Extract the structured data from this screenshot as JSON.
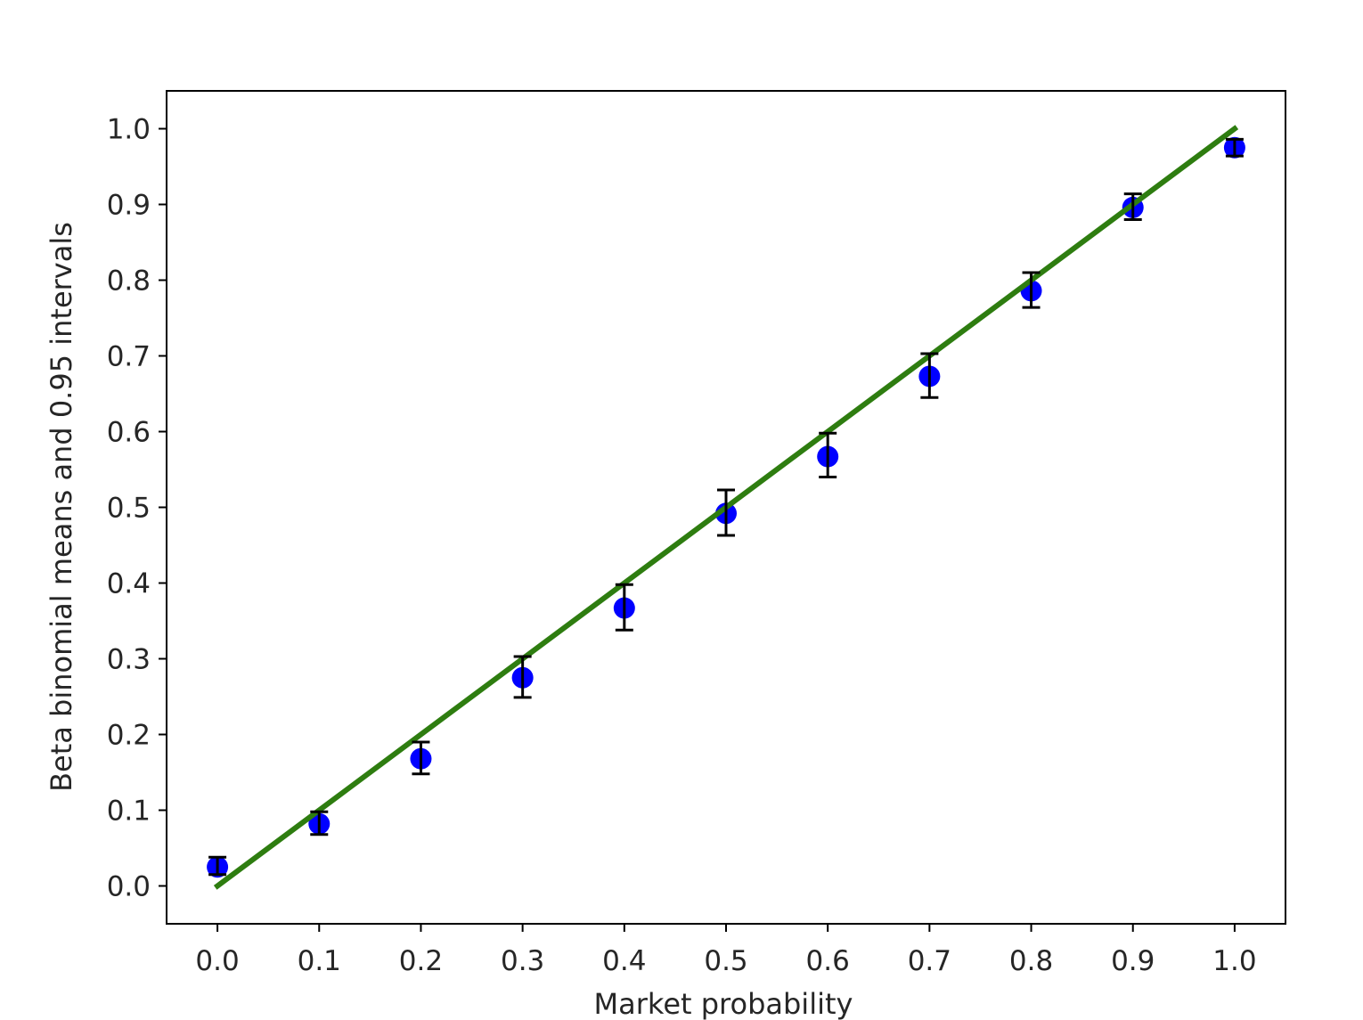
{
  "chart_data": {
    "type": "scatter",
    "title": "",
    "xlabel": "Market probability",
    "ylabel": "Beta binomial means and 0.95 intervals",
    "xlim": [
      -0.05,
      1.05
    ],
    "ylim": [
      -0.05,
      1.05
    ],
    "x_ticks": [
      "0.0",
      "0.1",
      "0.2",
      "0.3",
      "0.4",
      "0.5",
      "0.6",
      "0.7",
      "0.8",
      "0.9",
      "1.0"
    ],
    "y_ticks": [
      "0.0",
      "0.1",
      "0.2",
      "0.3",
      "0.4",
      "0.5",
      "0.6",
      "0.7",
      "0.8",
      "0.9",
      "1.0"
    ],
    "grid": false,
    "points": {
      "x": [
        0.0,
        0.1,
        0.2,
        0.3,
        0.4,
        0.5,
        0.6,
        0.7,
        0.8,
        0.9,
        1.0
      ],
      "y": [
        0.025,
        0.082,
        0.168,
        0.275,
        0.367,
        0.492,
        0.567,
        0.673,
        0.786,
        0.896,
        0.975
      ],
      "lower": [
        0.015,
        0.068,
        0.148,
        0.249,
        0.338,
        0.463,
        0.54,
        0.645,
        0.764,
        0.88,
        0.964
      ],
      "upper": [
        0.038,
        0.098,
        0.19,
        0.303,
        0.398,
        0.523,
        0.598,
        0.703,
        0.81,
        0.914,
        0.986
      ],
      "color": "#0000ff"
    },
    "line": {
      "x": [
        0.0,
        1.0
      ],
      "y": [
        0.0,
        1.0
      ],
      "color": "#2e7d10"
    },
    "errorbar_color": "#000000"
  }
}
